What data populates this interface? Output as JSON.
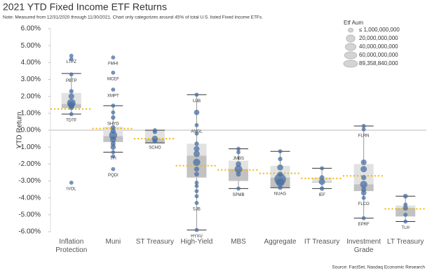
{
  "chart_data": {
    "type": "box",
    "title": "2021 YTD Fixed Income ETF Returns",
    "subtitle": "Note: Measured from 12/31/2020 through 11/30/2021. Chart only categorizes around 45% of total U.S. listed Fixed Income ETFs.",
    "y_label": "YTD Return",
    "source": "Source: FactSet, Nasdaq Economic Research",
    "ylim": [
      -6,
      6
    ],
    "yticks": [
      {
        "value": 6,
        "label": "6.00%"
      },
      {
        "value": 5,
        "label": "5.00%"
      },
      {
        "value": 4,
        "label": "4.00%"
      },
      {
        "value": 3,
        "label": "3.00%"
      },
      {
        "value": 2,
        "label": "2.00%"
      },
      {
        "value": 1,
        "label": "1.00%"
      },
      {
        "value": 0,
        "label": "0.00%"
      },
      {
        "value": -1,
        "label": "-1.00%"
      },
      {
        "value": -2,
        "label": "-2.00%"
      },
      {
        "value": -3,
        "label": "-3.00%"
      },
      {
        "value": -4,
        "label": "-4.00%"
      },
      {
        "value": -5,
        "label": "-5.00%"
      },
      {
        "value": -6,
        "label": "-6.00%"
      }
    ],
    "point_color": "#4a6fa0",
    "box_upper_color": "#e2e2e2",
    "box_lower_color": "#c2c2c2",
    "mean_color": "#f2b705",
    "legend": {
      "title": "Etf Aum",
      "sizes": [
        {
          "value": 1000000000,
          "label": "≤ 1,000,000,000"
        },
        {
          "value": 20000000000,
          "label": "20,000,000,000"
        },
        {
          "value": 40000000000,
          "label": "40,000,000,000"
        },
        {
          "value": 60000000000,
          "label": "60,000,000,000"
        },
        {
          "value": 89358840000,
          "label": "89,358,840,000"
        }
      ]
    },
    "categories": [
      "Inflation Protection",
      "Muni",
      "ST Treasury",
      "High-Yield",
      "MBS",
      "Aggregate",
      "IT Treasury",
      "Investment Grade",
      "LT Treasury"
    ],
    "boxes": [
      {
        "high": 3.35,
        "q3": 2.2,
        "median": 1.55,
        "q1": 1.3,
        "low": 0.95,
        "mean": 1.25,
        "points": [
          {
            "value": 4.4,
            "aum": 1000000000,
            "label": "LTPZ"
          },
          {
            "value": 4.2,
            "aum": 1000000000
          },
          {
            "value": 3.3,
            "aum": 1000000000,
            "label": "PBTP"
          },
          {
            "value": 2.3,
            "aum": 2000000000
          },
          {
            "value": 2.0,
            "aum": 8000000000
          },
          {
            "value": 1.6,
            "aum": 35000000000
          },
          {
            "value": 1.5,
            "aum": 15000000000
          },
          {
            "value": 1.35,
            "aum": 5000000000
          },
          {
            "value": 0.95,
            "aum": 1000000000,
            "label": "TDTF"
          },
          {
            "value": -3.1,
            "aum": 1000000000,
            "label": "IVOL"
          }
        ]
      },
      {
        "high": 1.45,
        "q3": 0.2,
        "median": -0.35,
        "q1": -0.7,
        "low": -1.3,
        "mean": 0.1,
        "points": [
          {
            "value": 4.3,
            "aum": 1000000000,
            "label": "FMHI"
          },
          {
            "value": 3.4,
            "aum": 1000000000,
            "label": "MCEF"
          },
          {
            "value": 2.4,
            "aum": 1000000000,
            "label": "XMPT"
          },
          {
            "value": 1.45,
            "aum": 1000000000
          },
          {
            "value": 1.05,
            "aum": 1000000000
          },
          {
            "value": 0.75,
            "aum": 2000000000,
            "label": "SHYD"
          },
          {
            "value": 0.15,
            "aum": 3000000000
          },
          {
            "value": -0.05,
            "aum": 5000000000
          },
          {
            "value": -0.3,
            "aum": 30000000000
          },
          {
            "value": -0.55,
            "aum": 10000000000
          },
          {
            "value": -0.8,
            "aum": 4000000000
          },
          {
            "value": -1.0,
            "aum": 6000000000
          },
          {
            "value": -1.3,
            "aum": 1000000000,
            "label": "TFI"
          },
          {
            "value": -1.55,
            "aum": 1000000000
          },
          {
            "value": -2.3,
            "aum": 1000000000,
            "label": "PQDI"
          }
        ]
      },
      {
        "high": 0.0,
        "q3": 0.0,
        "median": -0.5,
        "q1": -0.75,
        "low": -0.75,
        "mean": -0.5,
        "points": [
          {
            "value": 0.0,
            "aum": 1000000000
          },
          {
            "value": -0.1,
            "aum": 2000000000
          },
          {
            "value": -0.5,
            "aum": 10000000000
          },
          {
            "value": -0.65,
            "aum": 3000000000,
            "label": "SCHO"
          }
        ]
      },
      {
        "high": 2.1,
        "q3": -0.8,
        "median": -1.5,
        "q1": -2.8,
        "low": -5.9,
        "mean": -2.1,
        "points": [
          {
            "value": 2.1,
            "aum": 1000000000,
            "label": "UJB"
          },
          {
            "value": 1.05,
            "aum": 6000000000
          },
          {
            "value": 0.3,
            "aum": 1000000000,
            "label": "ANGL"
          },
          {
            "value": -0.2,
            "aum": 1000000000
          },
          {
            "value": -0.8,
            "aum": 2000000000
          },
          {
            "value": -1.1,
            "aum": 8000000000
          },
          {
            "value": -1.4,
            "aum": 12000000000
          },
          {
            "value": -1.9,
            "aum": 20000000000
          },
          {
            "value": -2.3,
            "aum": 4000000000
          },
          {
            "value": -2.6,
            "aum": 3000000000
          },
          {
            "value": -3.1,
            "aum": 1000000000
          },
          {
            "value": -3.3,
            "aum": 1000000000
          },
          {
            "value": -3.6,
            "aum": 1000000000
          },
          {
            "value": -3.9,
            "aum": 1000000000
          },
          {
            "value": -4.3,
            "aum": 1000000000,
            "label": "SJB"
          },
          {
            "value": -5.9,
            "aum": 1000000000,
            "label": "HYXU"
          }
        ]
      },
      {
        "high": -1.1,
        "q3": -1.8,
        "median": -2.3,
        "q1": -3.0,
        "low": -3.45,
        "mean": -2.35,
        "points": [
          {
            "value": -1.1,
            "aum": 1000000000
          },
          {
            "value": -1.3,
            "aum": 1000000000,
            "label": "JMBS"
          },
          {
            "value": -2.0,
            "aum": 6000000000
          },
          {
            "value": -2.3,
            "aum": 25000000000
          },
          {
            "value": -2.6,
            "aum": 3000000000
          },
          {
            "value": -3.45,
            "aum": 1000000000,
            "label": "SPMB"
          }
        ]
      },
      {
        "high": -1.25,
        "q3": -2.1,
        "median": -2.8,
        "q1": -3.4,
        "low": -3.4,
        "mean": -2.55,
        "points": [
          {
            "value": -1.25,
            "aum": 1000000000
          },
          {
            "value": -1.7,
            "aum": 2000000000
          },
          {
            "value": -2.2,
            "aum": 10000000000
          },
          {
            "value": -2.6,
            "aum": 5000000000
          },
          {
            "value": -2.9,
            "aum": 89358840000
          },
          {
            "value": -3.1,
            "aum": 30000000000
          },
          {
            "value": -3.4,
            "aum": 2000000000,
            "label": "NUAG"
          }
        ]
      },
      {
        "high": -2.25,
        "q3": -2.8,
        "median": -3.05,
        "q1": -3.1,
        "low": -3.45,
        "mean": -2.85,
        "points": [
          {
            "value": -2.25,
            "aum": 1000000000
          },
          {
            "value": -2.8,
            "aum": 3000000000
          },
          {
            "value": -3.05,
            "aum": 12000000000
          },
          {
            "value": -3.45,
            "aum": 2000000000,
            "label": "IEF"
          }
        ]
      },
      {
        "high": 0.25,
        "q3": -2.0,
        "median": -3.2,
        "q1": -3.6,
        "low": -5.2,
        "mean": -2.7,
        "points": [
          {
            "value": 0.25,
            "aum": 1000000000
          },
          {
            "value": 0.05,
            "aum": 1000000000,
            "label": "FLRN"
          },
          {
            "value": -1.9,
            "aum": 8000000000
          },
          {
            "value": -2.3,
            "aum": 12000000000
          },
          {
            "value": -2.8,
            "aum": 5000000000
          },
          {
            "value": -3.2,
            "aum": 20000000000
          },
          {
            "value": -3.5,
            "aum": 4000000000
          },
          {
            "value": -3.7,
            "aum": 6000000000
          },
          {
            "value": -4.0,
            "aum": 1000000000,
            "label": "FLCO"
          },
          {
            "value": -5.2,
            "aum": 1000000000,
            "label": "EPRF"
          }
        ]
      },
      {
        "high": -3.9,
        "q3": -4.45,
        "median": -4.6,
        "q1": -5.1,
        "low": -5.4,
        "mean": -4.65,
        "points": [
          {
            "value": -3.9,
            "aum": 3000000000
          },
          {
            "value": -4.4,
            "aum": 1000000000
          },
          {
            "value": -4.6,
            "aum": 5000000000
          },
          {
            "value": -5.0,
            "aum": 1000000000
          },
          {
            "value": -5.4,
            "aum": 1000000000,
            "label": "TLH"
          }
        ]
      }
    ]
  }
}
